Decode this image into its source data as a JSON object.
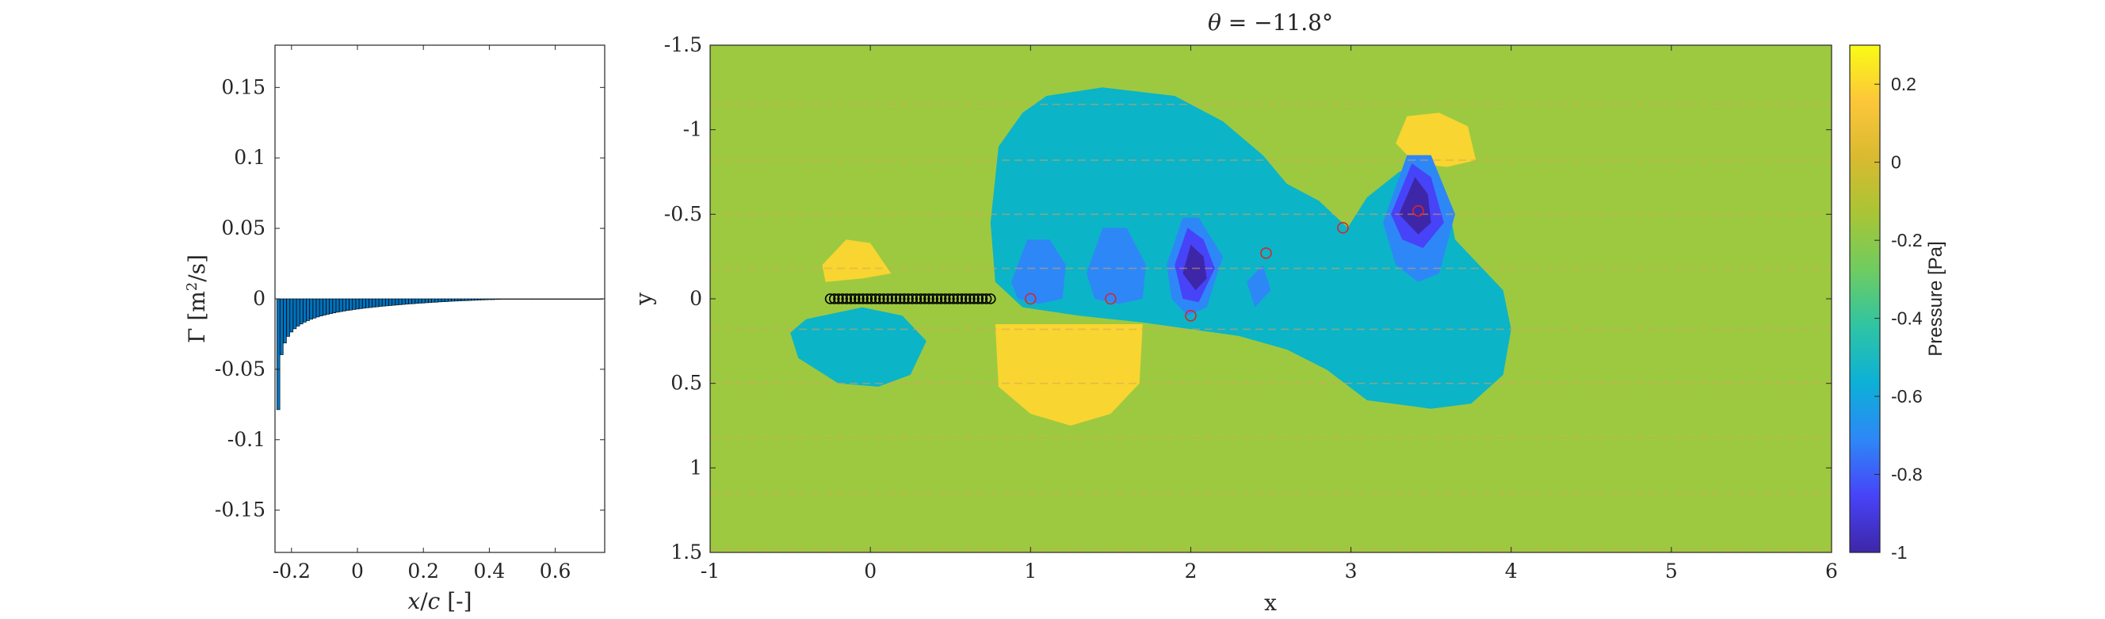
{
  "chart_data": [
    {
      "type": "bar",
      "xlabel": "x/c [-]",
      "ylabel": "Γ [m²/s]",
      "xlim": [
        -0.25,
        0.75
      ],
      "ylim": [
        -0.18,
        0.18
      ],
      "xticks": [
        "-0.2",
        "0",
        "0.2",
        "0.4",
        "0.6"
      ],
      "xtick_values": [
        -0.2,
        0,
        0.2,
        0.4,
        0.6
      ],
      "yticks": [
        "0.15",
        "0.1",
        "0.05",
        "0",
        "-0.05",
        "-0.1",
        "-0.15"
      ],
      "ytick_values": [
        0.15,
        0.1,
        0.05,
        0,
        -0.05,
        -0.1,
        -0.15
      ],
      "bar_color": "#0072BD",
      "x": [
        -0.24,
        -0.23,
        -0.22,
        -0.21,
        -0.2,
        -0.19,
        -0.18,
        -0.17,
        -0.16,
        -0.15,
        -0.14,
        -0.13,
        -0.12,
        -0.11,
        -0.1,
        -0.09,
        -0.08,
        -0.07,
        -0.06,
        -0.05,
        -0.04,
        -0.03,
        -0.02,
        -0.01,
        0.0,
        0.01,
        0.02,
        0.03,
        0.04,
        0.05,
        0.06,
        0.07,
        0.08,
        0.09,
        0.1,
        0.11,
        0.12,
        0.13,
        0.14,
        0.15,
        0.16,
        0.17,
        0.18,
        0.19,
        0.2,
        0.21,
        0.22,
        0.23,
        0.24,
        0.25,
        0.26,
        0.27,
        0.28,
        0.29,
        0.3,
        0.31,
        0.32,
        0.33,
        0.34,
        0.35,
        0.36,
        0.37,
        0.38,
        0.39,
        0.4,
        0.41,
        0.42,
        0.43,
        0.44,
        0.45,
        0.46,
        0.47,
        0.48,
        0.49,
        0.5,
        0.51,
        0.52,
        0.53,
        0.54,
        0.55,
        0.56,
        0.57,
        0.58,
        0.59,
        0.6,
        0.61,
        0.62,
        0.63,
        0.64,
        0.65,
        0.66,
        0.67,
        0.68,
        0.69,
        0.7,
        0.71,
        0.72,
        0.73,
        0.74
      ],
      "values": [
        -0.0787,
        -0.0397,
        -0.0314,
        -0.0267,
        -0.0236,
        -0.0213,
        -0.0194,
        -0.0179,
        -0.0166,
        -0.0155,
        -0.0145,
        -0.0137,
        -0.0129,
        -0.0122,
        -0.0116,
        -0.011,
        -0.0105,
        -0.01,
        -0.0095,
        -0.0091,
        -0.0087,
        -0.0083,
        -0.008,
        -0.0076,
        -0.0073,
        -0.007,
        -0.0067,
        -0.0064,
        -0.0062,
        -0.0059,
        -0.0057,
        -0.0054,
        -0.0052,
        -0.005,
        -0.0048,
        -0.0046,
        -0.0044,
        -0.0042,
        -0.004,
        -0.0038,
        -0.0036,
        -0.0035,
        -0.0033,
        -0.0031,
        -0.003,
        -0.0028,
        -0.0027,
        -0.0025,
        -0.0024,
        -0.0022,
        -0.0021,
        -0.002,
        -0.0018,
        -0.0017,
        -0.0016,
        -0.0015,
        -0.0014,
        -0.0013,
        -0.0012,
        -0.0011,
        -0.001,
        -0.0009,
        -0.0008,
        -0.0007,
        -0.0006,
        -0.0006,
        -0.0005,
        -0.0004,
        -0.0003,
        -0.0003,
        -0.0002,
        -0.0002,
        -0.0001,
        -0.0001,
        -0.0001,
        -0.0,
        -0.0,
        -0.0,
        -0.0,
        -0.0,
        -0.0,
        -0.0,
        -0.0,
        -0.0,
        -0.0,
        -0.0,
        -0.0,
        -0.0,
        -0.0,
        -0.0,
        -0.0,
        -0.0,
        -0.0,
        -0.0,
        -0.0,
        -0.0,
        -0.0,
        -0.0,
        -0.0
      ]
    },
    {
      "type": "heatmap",
      "title": "θ = −11.8°",
      "xlabel": "x",
      "ylabel": "y",
      "xlim": [
        -1,
        6
      ],
      "ylim": [
        -1.5,
        1.5
      ],
      "y_reversed": true,
      "xticks": [
        "-1",
        "0",
        "1",
        "2",
        "3",
        "4",
        "5",
        "6"
      ],
      "xtick_values": [
        -1,
        0,
        1,
        2,
        3,
        4,
        5,
        6
      ],
      "yticks": [
        "-1.5",
        "-1",
        "-0.5",
        "0",
        "0.5",
        "1",
        "1.5"
      ],
      "ytick_values": [
        -1.5,
        -1,
        -0.5,
        0,
        0.5,
        1,
        1.5
      ],
      "colorbar": {
        "label": "Pressure [Pa]",
        "range": [
          -1,
          0.3
        ],
        "ticks": [
          "0.2",
          "0",
          "-0.2",
          "-0.4",
          "-0.6",
          "-0.8",
          "-1"
        ],
        "tick_values": [
          0.2,
          0,
          -0.2,
          -0.4,
          -0.6,
          -0.8,
          -1
        ],
        "colors": [
          "#3e26a8",
          "#4743f8",
          "#2e87f7",
          "#0cb0d8",
          "#2ec4a4",
          "#6ecc61",
          "#a8c535",
          "#d9ba30",
          "#fcc63a",
          "#f9fb15"
        ]
      },
      "regions": [
        {
          "level": -0.05,
          "color": "#9dc940",
          "name": "background",
          "points": [
            [
              -1,
              -1.5
            ],
            [
              6,
              -1.5
            ],
            [
              6,
              1.5
            ],
            [
              -1,
              1.5
            ]
          ]
        },
        {
          "level": -0.4,
          "color": "#0cb4c7",
          "name": "wake-low-pressure",
          "points": [
            [
              0.75,
              -0.45
            ],
            [
              0.8,
              -0.9
            ],
            [
              0.95,
              -1.1
            ],
            [
              1.1,
              -1.2
            ],
            [
              1.45,
              -1.25
            ],
            [
              1.9,
              -1.2
            ],
            [
              2.2,
              -1.05
            ],
            [
              2.45,
              -0.85
            ],
            [
              2.6,
              -0.68
            ],
            [
              2.8,
              -0.58
            ],
            [
              2.98,
              -0.42
            ],
            [
              3.1,
              -0.6
            ],
            [
              3.3,
              -0.75
            ],
            [
              3.5,
              -0.82
            ],
            [
              3.6,
              -0.6
            ],
            [
              3.65,
              -0.35
            ],
            [
              3.8,
              -0.2
            ],
            [
              3.95,
              -0.05
            ],
            [
              4.0,
              0.18
            ],
            [
              3.95,
              0.45
            ],
            [
              3.75,
              0.62
            ],
            [
              3.5,
              0.65
            ],
            [
              3.1,
              0.6
            ],
            [
              2.85,
              0.42
            ],
            [
              2.6,
              0.3
            ],
            [
              2.3,
              0.22
            ],
            [
              2.0,
              0.18
            ],
            [
              1.7,
              0.14
            ],
            [
              1.3,
              0.1
            ],
            [
              0.95,
              0.05
            ],
            [
              0.78,
              -0.1
            ]
          ]
        },
        {
          "level": -0.4,
          "color": "#0cb4c7",
          "name": "upstream-low-pressure",
          "points": [
            [
              -0.05,
              0.05
            ],
            [
              0.2,
              0.1
            ],
            [
              0.35,
              0.25
            ],
            [
              0.25,
              0.45
            ],
            [
              0.05,
              0.52
            ],
            [
              -0.2,
              0.5
            ],
            [
              -0.45,
              0.35
            ],
            [
              -0.5,
              0.2
            ],
            [
              -0.4,
              0.12
            ]
          ]
        },
        {
          "level": 0.2,
          "color": "#f8d530",
          "name": "upstream-high-pressure",
          "points": [
            [
              -0.3,
              -0.2
            ],
            [
              -0.15,
              -0.35
            ],
            [
              0.0,
              -0.33
            ],
            [
              0.13,
              -0.15
            ],
            [
              -0.05,
              -0.12
            ],
            [
              -0.28,
              -0.1
            ]
          ]
        },
        {
          "level": 0.2,
          "color": "#f8d530",
          "name": "underside-high-pressure",
          "points": [
            [
              0.78,
              0.15
            ],
            [
              1.7,
              0.15
            ],
            [
              1.68,
              0.5
            ],
            [
              1.5,
              0.68
            ],
            [
              1.25,
              0.75
            ],
            [
              1.0,
              0.68
            ],
            [
              0.8,
              0.52
            ]
          ]
        },
        {
          "level": 0.2,
          "color": "#f8d530",
          "name": "top-high-pressure",
          "points": [
            [
              3.28,
              -0.92
            ],
            [
              3.35,
              -1.08
            ],
            [
              3.55,
              -1.1
            ],
            [
              3.73,
              -1.02
            ],
            [
              3.78,
              -0.82
            ],
            [
              3.6,
              -0.78
            ],
            [
              3.4,
              -0.8
            ]
          ]
        },
        {
          "level": -0.6,
          "color": "#2e87f7",
          "name": "vortex-1",
          "points": [
            [
              0.88,
              -0.1
            ],
            [
              0.98,
              -0.35
            ],
            [
              1.12,
              -0.35
            ],
            [
              1.22,
              -0.2
            ],
            [
              1.2,
              0.0
            ],
            [
              1.05,
              0.03
            ],
            [
              0.92,
              0.0
            ]
          ]
        },
        {
          "level": -0.6,
          "color": "#2e87f7",
          "name": "vortex-2",
          "points": [
            [
              1.35,
              -0.15
            ],
            [
              1.45,
              -0.42
            ],
            [
              1.6,
              -0.42
            ],
            [
              1.72,
              -0.2
            ],
            [
              1.7,
              0.0
            ],
            [
              1.55,
              0.03
            ],
            [
              1.4,
              0.0
            ]
          ]
        },
        {
          "level": -0.6,
          "color": "#2e87f7",
          "name": "vortex-3",
          "points": [
            [
              1.85,
              -0.2
            ],
            [
              1.95,
              -0.48
            ],
            [
              2.05,
              -0.48
            ],
            [
              2.2,
              -0.25
            ],
            [
              2.1,
              0.05
            ],
            [
              1.98,
              0.1
            ],
            [
              1.88,
              0.0
            ]
          ]
        },
        {
          "level": -0.6,
          "color": "#2e87f7",
          "name": "vortex-3b",
          "points": [
            [
              2.35,
              -0.1
            ],
            [
              2.45,
              -0.2
            ],
            [
              2.5,
              -0.05
            ],
            [
              2.4,
              0.05
            ]
          ]
        },
        {
          "level": -0.6,
          "color": "#2e87f7",
          "name": "vortex-4",
          "points": [
            [
              3.2,
              -0.45
            ],
            [
              3.35,
              -0.85
            ],
            [
              3.5,
              -0.85
            ],
            [
              3.65,
              -0.5
            ],
            [
              3.55,
              -0.15
            ],
            [
              3.42,
              -0.1
            ],
            [
              3.28,
              -0.2
            ]
          ]
        },
        {
          "level": -0.8,
          "color": "#4743f8",
          "name": "vortex-3-core",
          "points": [
            [
              1.9,
              -0.2
            ],
            [
              1.98,
              -0.42
            ],
            [
              2.08,
              -0.35
            ],
            [
              2.15,
              -0.18
            ],
            [
              2.05,
              0.02
            ],
            [
              1.95,
              0.0
            ]
          ]
        },
        {
          "level": -0.8,
          "color": "#4743f8",
          "name": "vortex-4-core",
          "points": [
            [
              3.25,
              -0.5
            ],
            [
              3.38,
              -0.8
            ],
            [
              3.5,
              -0.72
            ],
            [
              3.58,
              -0.45
            ],
            [
              3.45,
              -0.3
            ],
            [
              3.32,
              -0.35
            ]
          ]
        },
        {
          "level": -1.0,
          "color": "#3e26a8",
          "name": "vortex-3-inner",
          "points": [
            [
              1.95,
              -0.15
            ],
            [
              2.0,
              -0.32
            ],
            [
              2.08,
              -0.25
            ],
            [
              2.1,
              -0.12
            ],
            [
              2.03,
              -0.05
            ]
          ]
        },
        {
          "level": -1.0,
          "color": "#3e26a8",
          "name": "vortex-4-inner",
          "points": [
            [
              3.3,
              -0.5
            ],
            [
              3.4,
              -0.72
            ],
            [
              3.48,
              -0.62
            ],
            [
              3.5,
              -0.45
            ],
            [
              3.42,
              -0.38
            ]
          ]
        }
      ],
      "plate_points_color": "#000000",
      "vortex_markers_color": "#d62728",
      "vortex_markers": [
        [
          1.0,
          0.0
        ],
        [
          1.5,
          0.0
        ],
        [
          2.0,
          0.1
        ],
        [
          2.47,
          -0.27
        ],
        [
          2.95,
          -0.42
        ],
        [
          3.42,
          -0.52
        ]
      ],
      "plate_x_range": [
        -0.25,
        0.75
      ],
      "plate_count": 40
    }
  ]
}
